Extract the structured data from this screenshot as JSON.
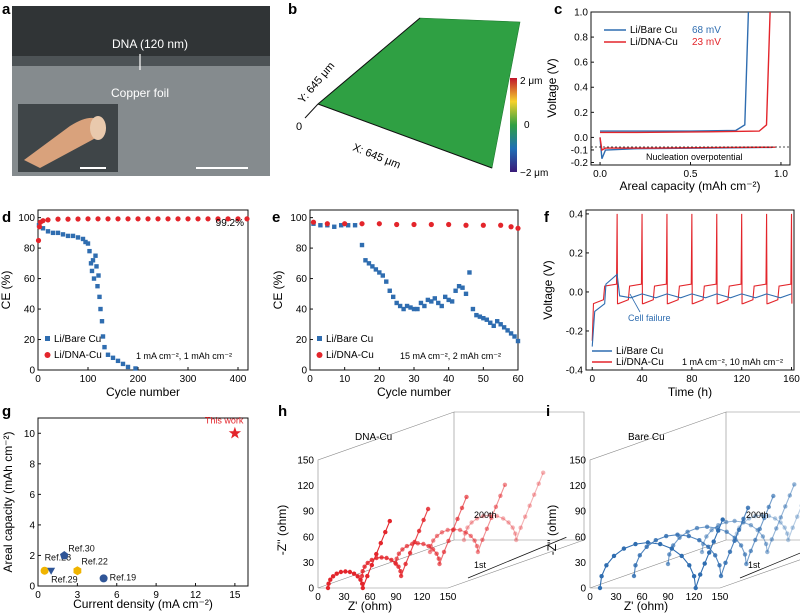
{
  "panels": {
    "a": {
      "label": "a",
      "layer_label": "DNA (120 nm)",
      "substrate_label": "Copper foil",
      "colors": {
        "background": "#7e8588",
        "layer": "#5c6366",
        "foil": "#d9a27c"
      }
    },
    "b": {
      "label": "b",
      "y_label": "Y: 645 μm",
      "x_label": "X: 645 μm",
      "origin": "0",
      "colorbar_ticks": [
        "2 μm",
        "0",
        "−2 μm"
      ],
      "colors": {
        "surface": "#2fa043"
      }
    },
    "c": {
      "label": "c",
      "xlabel": "Areal capacity (mAh cm⁻²)",
      "ylabel": "Voltage (V)",
      "xticks": [
        "0.0",
        "0.5",
        "1.0"
      ],
      "yticks": [
        "-0.2",
        "-0.1",
        "0.0",
        "0.2",
        "0.4",
        "0.6",
        "0.8",
        "1.0"
      ],
      "legend": [
        {
          "name": "Li/Bare Cu",
          "value": "68 mV",
          "color": "#2f6db0"
        },
        {
          "name": "Li/DNA-Cu",
          "value": "23 mV",
          "color": "#e3252b"
        }
      ],
      "annotation": "Nucleation overpotential"
    },
    "d": {
      "label": "d",
      "xlabel": "Cycle number",
      "ylabel": "CE (%)",
      "xticks": [
        "0",
        "100",
        "200",
        "300",
        "400"
      ],
      "yticks": [
        "0",
        "20",
        "40",
        "60",
        "80",
        "100"
      ],
      "annotation": "99.2%",
      "legend": [
        "Li/Bare Cu",
        "Li/DNA-Cu"
      ],
      "condition": "1 mA cm⁻², 1 mAh cm⁻²"
    },
    "e": {
      "label": "e",
      "xlabel": "Cycle number",
      "ylabel": "CE (%)",
      "xticks": [
        "0",
        "10",
        "20",
        "30",
        "40",
        "50",
        "60"
      ],
      "yticks": [
        "0",
        "20",
        "40",
        "60",
        "80",
        "100"
      ],
      "legend": [
        "Li/Bare Cu",
        "Li/DNA-Cu"
      ],
      "condition": "15 mA cm⁻², 2 mAh cm⁻²"
    },
    "f": {
      "label": "f",
      "xlabel": "Time (h)",
      "ylabel": "Voltage (V)",
      "xticks": [
        "0",
        "40",
        "80",
        "120",
        "160"
      ],
      "yticks": [
        "-0.4",
        "-0.2",
        "0.0",
        "0.2",
        "0.4"
      ],
      "annotation": "Cell failure",
      "legend": [
        "Li/Bare Cu",
        "Li/DNA-Cu"
      ],
      "condition": "1 mA cm⁻², 10 mAh cm⁻²"
    },
    "g": {
      "label": "g",
      "xlabel": "Current density (mA cm⁻²)",
      "ylabel": "Areal capacity (mAh cm⁻²)",
      "xticks": [
        "0",
        "3",
        "6",
        "9",
        "12",
        "15"
      ],
      "yticks": [
        "0",
        "2",
        "4",
        "6",
        "8",
        "10"
      ]
    },
    "h": {
      "label": "h",
      "title": "DNA-Cu",
      "xlabel": "Z' (ohm)",
      "ylabel": "-Z'' (ohm)",
      "xticks": [
        "0",
        "30",
        "60",
        "90",
        "120",
        "150"
      ],
      "yticks": [
        "0",
        "30",
        "60",
        "90",
        "120",
        "150"
      ],
      "last_label": "200th",
      "first_label": "1st"
    },
    "i": {
      "label": "i",
      "title": "Bare Cu",
      "xlabel": "Z' (ohm)",
      "ylabel": "-Z'' (ohm)",
      "xticks": [
        "0",
        "30",
        "60",
        "90",
        "120",
        "150"
      ],
      "yticks": [
        "0",
        "30",
        "60",
        "90",
        "120",
        "150"
      ],
      "last_label": "200th",
      "first_label": "1st"
    }
  },
  "chart_data": [
    {
      "panel": "c",
      "type": "line",
      "xlabel": "Areal capacity (mAh cm⁻²)",
      "ylabel": "Voltage (V)",
      "xlim": [
        -0.05,
        1.05
      ],
      "ylim": [
        -0.22,
        1.0
      ],
      "series": [
        {
          "name": "Li/Bare Cu",
          "color": "#2f6db0",
          "discharge": [
            [
              0.0,
              0.0
            ],
            [
              0.01,
              -0.17
            ],
            [
              0.03,
              -0.1
            ],
            [
              0.2,
              -0.09
            ],
            [
              0.6,
              -0.085
            ],
            [
              0.9,
              -0.08
            ],
            [
              0.95,
              -0.08
            ]
          ],
          "charge": [
            [
              0.0,
              0.05
            ],
            [
              0.2,
              0.05
            ],
            [
              0.5,
              0.05
            ],
            [
              0.75,
              0.055
            ],
            [
              0.8,
              0.1
            ],
            [
              0.82,
              1.0
            ]
          ]
        },
        {
          "name": "Li/DNA-Cu",
          "color": "#e3252b",
          "discharge": [
            [
              0.0,
              0.0
            ],
            [
              0.01,
              -0.1
            ],
            [
              0.03,
              -0.085
            ],
            [
              0.3,
              -0.085
            ],
            [
              0.7,
              -0.08
            ],
            [
              0.97,
              -0.078
            ]
          ],
          "charge": [
            [
              0.0,
              0.04
            ],
            [
              0.2,
              0.04
            ],
            [
              0.6,
              0.045
            ],
            [
              0.88,
              0.05
            ],
            [
              0.92,
              0.1
            ],
            [
              0.94,
              1.0
            ]
          ]
        }
      ]
    },
    {
      "panel": "d",
      "type": "scatter",
      "xlabel": "Cycle number",
      "ylabel": "CE (%)",
      "xlim": [
        0,
        420
      ],
      "ylim": [
        0,
        105
      ],
      "series": [
        {
          "name": "Li/Bare Cu",
          "color": "#2f6db0",
          "points": [
            [
              2,
              95
            ],
            [
              10,
              93
            ],
            [
              20,
              91
            ],
            [
              30,
              90
            ],
            [
              40,
              90
            ],
            [
              50,
              89
            ],
            [
              60,
              88
            ],
            [
              70,
              88
            ],
            [
              80,
              87
            ],
            [
              90,
              86
            ],
            [
              95,
              84
            ],
            [
              100,
              83
            ],
            [
              103,
              78
            ],
            [
              106,
              70
            ],
            [
              108,
              65
            ],
            [
              110,
              72
            ],
            [
              112,
              60
            ],
            [
              115,
              75
            ],
            [
              117,
              68
            ],
            [
              119,
              55
            ],
            [
              121,
              62
            ],
            [
              123,
              48
            ],
            [
              125,
              40
            ],
            [
              128,
              32
            ],
            [
              130,
              22
            ],
            [
              133,
              15
            ],
            [
              140,
              10
            ],
            [
              150,
              8
            ],
            [
              160,
              6
            ],
            [
              170,
              4
            ],
            [
              180,
              2
            ],
            [
              195,
              1
            ]
          ]
        },
        {
          "name": "Li/DNA-Cu",
          "color": "#e3252b",
          "points": [
            [
              1,
              85
            ],
            [
              3,
              94
            ],
            [
              5,
              97
            ],
            [
              10,
              98
            ],
            [
              20,
              98.5
            ],
            [
              40,
              99
            ],
            [
              60,
              99
            ],
            [
              80,
              99.1
            ],
            [
              100,
              99.2
            ],
            [
              120,
              99.2
            ],
            [
              140,
              99.2
            ],
            [
              160,
              99.2
            ],
            [
              180,
              99.2
            ],
            [
              200,
              99.2
            ],
            [
              220,
              99.2
            ],
            [
              240,
              99.2
            ],
            [
              260,
              99.2
            ],
            [
              280,
              99.2
            ],
            [
              300,
              99.2
            ],
            [
              320,
              99.2
            ],
            [
              340,
              99.2
            ],
            [
              360,
              99.2
            ],
            [
              380,
              99.2
            ],
            [
              400,
              99.2
            ],
            [
              418,
              99.2
            ]
          ]
        }
      ]
    },
    {
      "panel": "e",
      "type": "scatter",
      "xlabel": "Cycle number",
      "ylabel": "CE (%)",
      "xlim": [
        0,
        60
      ],
      "ylim": [
        0,
        105
      ],
      "series": [
        {
          "name": "Li/Bare Cu",
          "color": "#2f6db0",
          "points": [
            [
              1,
              96
            ],
            [
              3,
              95
            ],
            [
              5,
              95
            ],
            [
              7,
              94
            ],
            [
              9,
              95
            ],
            [
              11,
              95
            ],
            [
              13,
              95
            ],
            [
              15,
              82
            ],
            [
              16,
              72
            ],
            [
              17,
              70
            ],
            [
              18,
              68
            ],
            [
              19,
              66
            ],
            [
              20,
              64
            ],
            [
              21,
              62
            ],
            [
              22,
              58
            ],
            [
              23,
              52
            ],
            [
              24,
              48
            ],
            [
              25,
              44
            ],
            [
              26,
              42
            ],
            [
              27,
              40
            ],
            [
              28,
              42
            ],
            [
              29,
              41
            ],
            [
              30,
              40
            ],
            [
              31,
              40
            ],
            [
              32,
              44
            ],
            [
              33,
              42
            ],
            [
              34,
              46
            ],
            [
              35,
              45
            ],
            [
              36,
              47
            ],
            [
              37,
              44
            ],
            [
              38,
              42
            ],
            [
              39,
              48
            ],
            [
              40,
              46
            ],
            [
              41,
              45
            ],
            [
              42,
              52
            ],
            [
              43,
              55
            ],
            [
              44,
              54
            ],
            [
              45,
              50
            ],
            [
              46,
              64
            ],
            [
              47,
              40
            ],
            [
              48,
              36
            ],
            [
              49,
              35
            ],
            [
              50,
              34
            ],
            [
              51,
              33
            ],
            [
              52,
              31
            ],
            [
              53,
              29
            ],
            [
              54,
              32
            ],
            [
              55,
              30
            ],
            [
              56,
              28
            ],
            [
              57,
              26
            ],
            [
              58,
              24
            ],
            [
              59,
              22
            ],
            [
              60,
              19
            ]
          ]
        },
        {
          "name": "Li/DNA-Cu",
          "color": "#e3252b",
          "points": [
            [
              1,
              97
            ],
            [
              5,
              96
            ],
            [
              10,
              96
            ],
            [
              15,
              96
            ],
            [
              20,
              96
            ],
            [
              25,
              95.5
            ],
            [
              30,
              95.5
            ],
            [
              35,
              95.5
            ],
            [
              40,
              95.5
            ],
            [
              45,
              95
            ],
            [
              50,
              95
            ],
            [
              55,
              95
            ],
            [
              58,
              94
            ],
            [
              60,
              93
            ]
          ]
        }
      ]
    },
    {
      "panel": "f",
      "type": "line",
      "xlabel": "Time (h)",
      "ylabel": "Voltage (V)",
      "xlim": [
        -5,
        162
      ],
      "ylim": [
        -0.4,
        0.42
      ],
      "series": [
        {
          "name": "Li/Bare Cu",
          "color": "#2f6db0",
          "failure_time_h": 22
        },
        {
          "name": "Li/DNA-Cu",
          "color": "#e3252b",
          "cycle_period_h": 20,
          "spike_v": 0.4,
          "plateau_v": [
            -0.05,
            0.04
          ]
        }
      ]
    },
    {
      "panel": "g",
      "type": "scatter",
      "xlabel": "Current density (mA cm⁻²)",
      "ylabel": "Areal capacity (mAh cm⁻²)",
      "xlim": [
        0,
        16
      ],
      "ylim": [
        0,
        11
      ],
      "series": [
        {
          "name": "This work",
          "x": 15,
          "y": 10,
          "color": "#e3252b",
          "marker": "star"
        },
        {
          "name": "Ref.28",
          "x": 0.5,
          "y": 1,
          "color": "#f0b400",
          "marker": "circle"
        },
        {
          "name": "Ref.29",
          "x": 1,
          "y": 1,
          "color": "#2f5597",
          "marker": "triangle-down"
        },
        {
          "name": "Ref.30",
          "x": 2,
          "y": 2,
          "color": "#2f5597",
          "marker": "pentagon"
        },
        {
          "name": "Ref.22",
          "x": 3,
          "y": 1,
          "color": "#f0b400",
          "marker": "hexagon"
        },
        {
          "name": "Ref.19",
          "x": 5,
          "y": 0.5,
          "color": "#2f5597",
          "marker": "circle"
        }
      ]
    },
    {
      "panel": "h",
      "type": "line",
      "projection": "3d",
      "xlabel": "Z' (ohm)",
      "ylabel": "-Z'' (ohm)",
      "series_base_color": "#e3252b",
      "cycles": [
        "1st",
        "200th"
      ],
      "semicircle_diameter_ohm": [
        60,
        55,
        50,
        45,
        40
      ]
    },
    {
      "panel": "i",
      "type": "line",
      "projection": "3d",
      "xlabel": "Z' (ohm)",
      "ylabel": "-Z'' (ohm)",
      "series_base_color": "#2f6db0",
      "cycles": [
        "1st",
        "200th"
      ],
      "semicircle_diameter_ohm": [
        60,
        75,
        90,
        100,
        110
      ]
    }
  ]
}
